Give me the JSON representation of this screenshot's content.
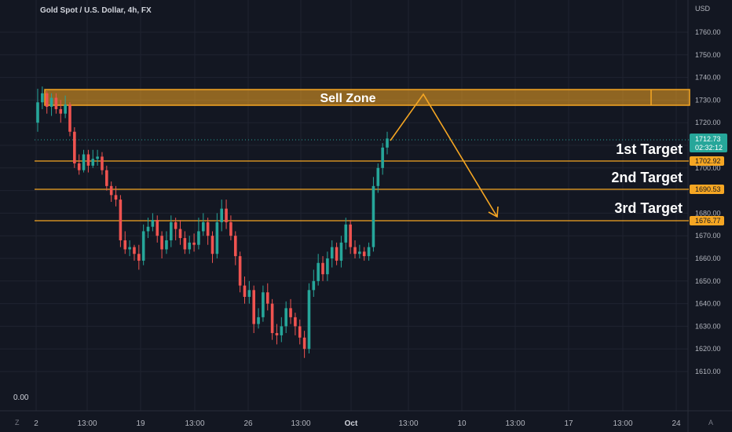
{
  "header": {
    "symbol_title": "Gold Spot / U.S. Dollar, 4h, FX"
  },
  "price_axis": {
    "currency": "USD",
    "ticks": [
      "1760.00",
      "1750.00",
      "1740.00",
      "1730.00",
      "1720.00",
      "1710.00",
      "1700.00",
      "1690.00",
      "1680.00",
      "1670.00",
      "1660.00",
      "1650.00",
      "1640.00",
      "1630.00",
      "1620.00",
      "1610.00"
    ],
    "current_price": "1712.73",
    "countdown": "02:32:12"
  },
  "indicator": {
    "value": "0.00"
  },
  "time_axis": {
    "labels": [
      "2",
      "13:00",
      "19",
      "13:00",
      "26",
      "13:00",
      "Oct",
      "13:00",
      "10",
      "13:00",
      "17",
      "13:00",
      "24"
    ]
  },
  "controls": {
    "left_button": "Z",
    "right_button": "A"
  },
  "annotations": {
    "sell_zone": "Sell Zone",
    "targets": [
      {
        "label": "1st Target",
        "price": "1702.92"
      },
      {
        "label": "2nd Target",
        "price": "1690.53"
      },
      {
        "label": "3rd Target",
        "price": "1676.77"
      }
    ]
  },
  "colors": {
    "background": "#131722",
    "up": "#26a69a",
    "down": "#ef5350",
    "annotation": "#f5a623",
    "grid": "#1f2330",
    "text": "#b2b5be"
  },
  "chart_data": {
    "type": "candlestick",
    "title": "Gold Spot / U.S. Dollar, 4h, FX",
    "ylim": [
      1604,
      1769
    ],
    "sell_zone_range": [
      1727,
      1735
    ],
    "target_levels": [
      1702.92,
      1690.53,
      1676.77
    ],
    "projection": [
      [
        1713,
        1733
      ],
      [
        1733,
        1676
      ]
    ],
    "candles": [
      [
        1720,
        1729,
        1735,
        1716
      ],
      [
        1729,
        1733,
        1736,
        1726
      ],
      [
        1733,
        1727,
        1734,
        1724
      ],
      [
        1727,
        1731,
        1733,
        1723
      ],
      [
        1731,
        1726,
        1733,
        1724
      ],
      [
        1726,
        1724,
        1730,
        1720
      ],
      [
        1724,
        1728,
        1732,
        1722
      ],
      [
        1728,
        1716,
        1729,
        1714
      ],
      [
        1716,
        1702,
        1718,
        1700
      ],
      [
        1702,
        1699,
        1706,
        1697
      ],
      [
        1699,
        1706,
        1708,
        1698
      ],
      [
        1706,
        1701,
        1708,
        1698
      ],
      [
        1701,
        1704,
        1708,
        1700
      ],
      [
        1704,
        1705,
        1708,
        1701
      ],
      [
        1705,
        1699,
        1707,
        1697
      ],
      [
        1699,
        1692,
        1701,
        1690
      ],
      [
        1692,
        1688,
        1694,
        1685
      ],
      [
        1688,
        1686,
        1692,
        1683
      ],
      [
        1686,
        1668,
        1688,
        1665
      ],
      [
        1668,
        1664,
        1672,
        1662
      ],
      [
        1664,
        1665,
        1668,
        1661
      ],
      [
        1665,
        1662,
        1666,
        1659
      ],
      [
        1662,
        1659,
        1666,
        1655
      ],
      [
        1659,
        1672,
        1675,
        1657
      ],
      [
        1672,
        1674,
        1678,
        1669
      ],
      [
        1674,
        1677,
        1680,
        1672
      ],
      [
        1677,
        1670,
        1679,
        1667
      ],
      [
        1670,
        1664,
        1672,
        1660
      ],
      [
        1664,
        1668,
        1672,
        1662
      ],
      [
        1668,
        1676,
        1679,
        1665
      ],
      [
        1676,
        1673,
        1678,
        1668
      ],
      [
        1673,
        1669,
        1677,
        1666
      ],
      [
        1669,
        1664,
        1672,
        1662
      ],
      [
        1664,
        1667,
        1670,
        1662
      ],
      [
        1667,
        1666,
        1671,
        1663
      ],
      [
        1666,
        1672,
        1678,
        1664
      ],
      [
        1672,
        1676,
        1680,
        1670
      ],
      [
        1676,
        1670,
        1678,
        1666
      ],
      [
        1670,
        1662,
        1672,
        1658
      ],
      [
        1662,
        1676,
        1680,
        1660
      ],
      [
        1676,
        1682,
        1686,
        1672
      ],
      [
        1682,
        1676,
        1686,
        1673
      ],
      [
        1676,
        1670,
        1679,
        1668
      ],
      [
        1670,
        1661,
        1672,
        1657
      ],
      [
        1661,
        1648,
        1663,
        1645
      ],
      [
        1648,
        1643,
        1652,
        1640
      ],
      [
        1643,
        1646,
        1650,
        1640
      ],
      [
        1646,
        1631,
        1648,
        1627
      ],
      [
        1631,
        1634,
        1638,
        1629
      ],
      [
        1634,
        1645,
        1648,
        1632
      ],
      [
        1645,
        1640,
        1649,
        1637
      ],
      [
        1640,
        1627,
        1642,
        1624
      ],
      [
        1627,
        1626,
        1631,
        1622
      ],
      [
        1626,
        1630,
        1634,
        1623
      ],
      [
        1630,
        1638,
        1641,
        1627
      ],
      [
        1638,
        1634,
        1642,
        1631
      ],
      [
        1634,
        1630,
        1636,
        1626
      ],
      [
        1630,
        1625,
        1633,
        1622
      ],
      [
        1625,
        1620,
        1628,
        1616
      ],
      [
        1620,
        1646,
        1649,
        1618
      ],
      [
        1646,
        1650,
        1655,
        1643
      ],
      [
        1650,
        1658,
        1662,
        1648
      ],
      [
        1658,
        1653,
        1661,
        1650
      ],
      [
        1653,
        1660,
        1663,
        1650
      ],
      [
        1660,
        1665,
        1668,
        1656
      ],
      [
        1665,
        1659,
        1667,
        1657
      ],
      [
        1659,
        1667,
        1670,
        1656
      ],
      [
        1667,
        1675,
        1678,
        1664
      ],
      [
        1675,
        1665,
        1677,
        1662
      ],
      [
        1665,
        1662,
        1668,
        1660
      ],
      [
        1662,
        1663,
        1666,
        1660
      ],
      [
        1663,
        1661,
        1665,
        1659
      ],
      [
        1661,
        1665,
        1667,
        1659
      ],
      [
        1665,
        1692,
        1696,
        1663
      ],
      [
        1692,
        1700,
        1702,
        1689
      ],
      [
        1700,
        1709,
        1711,
        1697
      ],
      [
        1709,
        1713,
        1716,
        1706
      ]
    ]
  }
}
